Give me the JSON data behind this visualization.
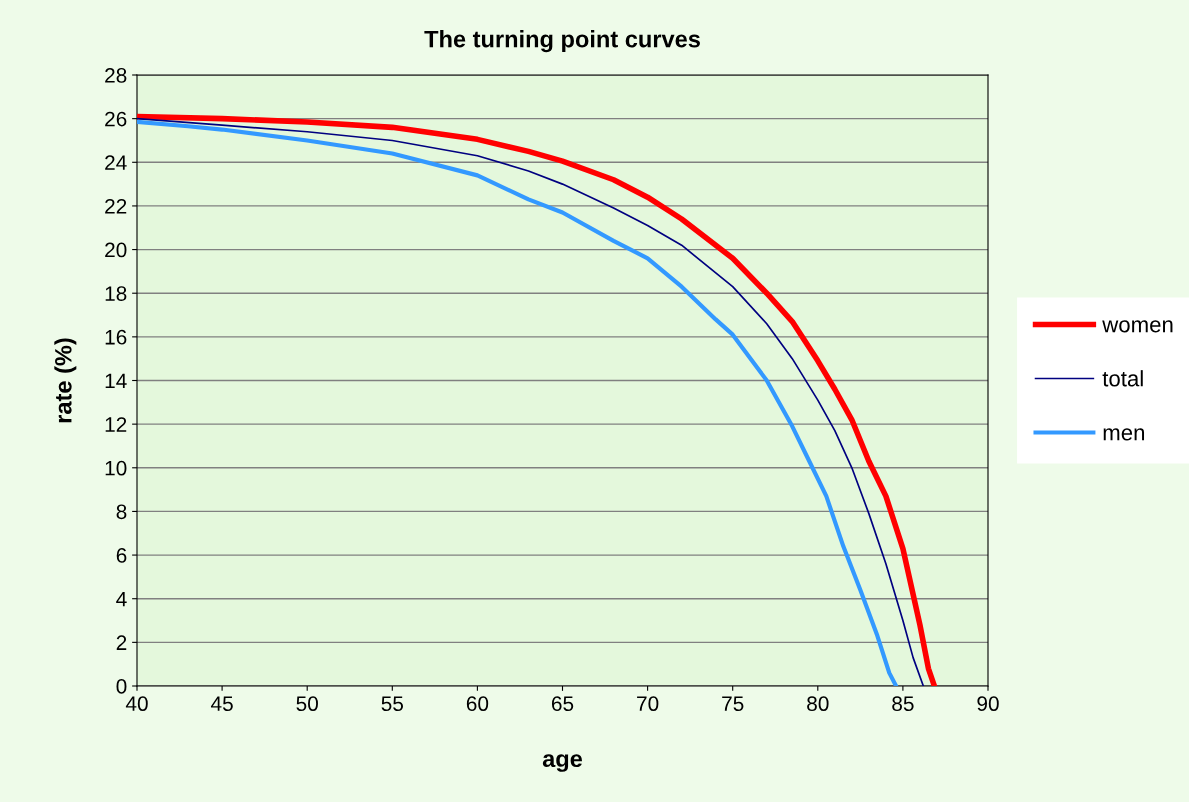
{
  "chart_data": {
    "type": "line",
    "title": "The turning point curves",
    "xlabel": "age",
    "ylabel": "rate (%)",
    "xlim": [
      40,
      90
    ],
    "xticks": [
      40,
      45,
      50,
      55,
      60,
      65,
      70,
      75,
      80,
      85,
      90
    ],
    "ylim": [
      0,
      28
    ],
    "yticks": [
      0,
      2,
      4,
      6,
      8,
      10,
      12,
      14,
      16,
      18,
      20,
      22,
      24,
      26,
      28
    ],
    "grid": "y",
    "legend": "right",
    "marker": "none",
    "line_style": "solid",
    "series": [
      {
        "name": "women",
        "color": "#ff0000",
        "x": [
          40,
          45,
          50,
          55,
          60,
          63,
          65,
          68,
          70,
          72,
          75,
          77,
          78.5,
          80,
          81,
          82,
          83,
          84,
          85,
          86,
          86.5,
          86.85
        ],
        "values": [
          26.1,
          26.0,
          25.85,
          25.6,
          25.05,
          24.5,
          24.05,
          23.2,
          22.4,
          21.4,
          19.6,
          18.0,
          16.7,
          14.9,
          13.6,
          12.2,
          10.3,
          8.7,
          6.3,
          2.8,
          0.8,
          0
        ]
      },
      {
        "name": "total",
        "color": "#000080",
        "x": [
          40,
          45,
          50,
          55,
          60,
          63,
          65,
          68,
          70,
          72,
          75,
          77,
          78.5,
          80,
          81,
          82,
          83,
          84,
          85,
          85.6,
          86.2
        ],
        "values": [
          26.0,
          25.7,
          25.4,
          25.0,
          24.3,
          23.6,
          23.0,
          21.9,
          21.1,
          20.2,
          18.3,
          16.6,
          15.0,
          13.1,
          11.7,
          10.0,
          7.9,
          5.6,
          3.0,
          1.3,
          0
        ]
      },
      {
        "name": "men",
        "color": "#3399ff",
        "x": [
          40,
          43,
          45,
          50,
          55,
          60,
          63,
          65,
          68,
          70,
          72,
          74,
          75,
          77,
          78.5,
          79.5,
          80.5,
          81.5,
          82.5,
          83.5,
          84.2,
          84.6
        ],
        "values": [
          25.85,
          25.65,
          25.5,
          25.0,
          24.4,
          23.4,
          22.3,
          21.7,
          20.4,
          19.6,
          18.3,
          16.8,
          16.1,
          14.0,
          11.9,
          10.3,
          8.7,
          6.4,
          4.4,
          2.3,
          0.6,
          0
        ]
      }
    ]
  }
}
